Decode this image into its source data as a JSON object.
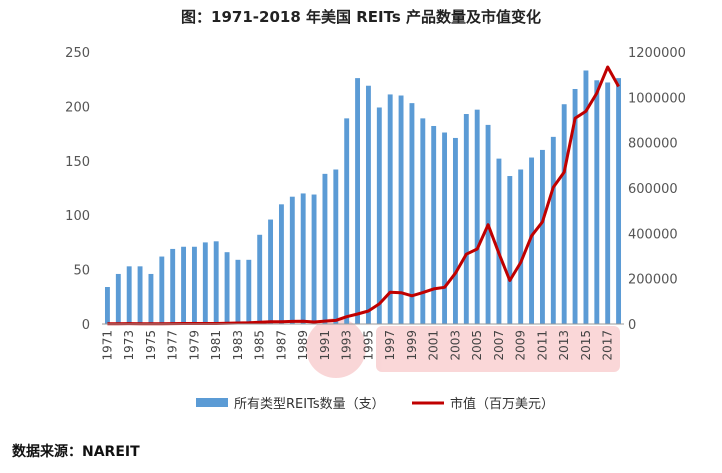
{
  "chart_data": {
    "type": "bar",
    "title": "图：1971-2018 年美国 REITs 产品数量及市值变化",
    "x": [
      1971,
      1972,
      1973,
      1974,
      1975,
      1976,
      1977,
      1978,
      1979,
      1980,
      1981,
      1982,
      1983,
      1984,
      1985,
      1986,
      1987,
      1988,
      1989,
      1990,
      1991,
      1992,
      1993,
      1994,
      1995,
      1996,
      1997,
      1998,
      1999,
      2000,
      2001,
      2002,
      2003,
      2004,
      2005,
      2006,
      2007,
      2008,
      2009,
      2010,
      2011,
      2012,
      2013,
      2014,
      2015,
      2016,
      2017,
      2018
    ],
    "x_tick_labels": [
      "1971",
      "1973",
      "1975",
      "1977",
      "1979",
      "1981",
      "1983",
      "1985",
      "1987",
      "1989",
      "1991",
      "1993",
      "1995",
      "1997",
      "1999",
      "2001",
      "2003",
      "2005",
      "2007",
      "2009",
      "2011",
      "2013",
      "2015",
      "2017"
    ],
    "series": [
      {
        "name": "所有类型REITs数量（支）",
        "type": "bar",
        "axis": "left",
        "color": "#5b9bd5",
        "values": [
          34,
          46,
          53,
          53,
          46,
          62,
          69,
          71,
          71,
          75,
          76,
          66,
          59,
          59,
          82,
          96,
          110,
          117,
          120,
          119,
          138,
          142,
          189,
          226,
          219,
          199,
          211,
          210,
          203,
          189,
          182,
          176,
          171,
          193,
          197,
          183,
          152,
          136,
          142,
          153,
          160,
          172,
          202,
          216,
          233,
          224,
          222,
          226
        ]
      },
      {
        "name": "市值（百万美元）",
        "type": "line",
        "axis": "right",
        "color": "#c00000",
        "values": [
          1500,
          1500,
          1600,
          700,
          900,
          1300,
          1900,
          2000,
          2200,
          2300,
          2400,
          3300,
          4300,
          5100,
          7700,
          9900,
          9700,
          11400,
          11700,
          8700,
          12900,
          16000,
          32000,
          44300,
          57500,
          88800,
          140500,
          138300,
          124300,
          138700,
          154900,
          161900,
          224200,
          307900,
          331000,
          438100,
          312000,
          191700,
          271200,
          389300,
          450500,
          603400,
          670300,
          907400,
          938700,
          1018700,
          1133700,
          1047600
        ]
      }
    ],
    "y_left": {
      "ylim": [
        0,
        250
      ],
      "ticks": [
        0,
        50,
        100,
        150,
        200,
        250
      ]
    },
    "y_right": {
      "ylim": [
        0,
        1200000
      ],
      "ticks": [
        0,
        200000,
        400000,
        600000,
        800000,
        1000000,
        1200000
      ]
    },
    "grid": false,
    "legend_position": "bottom"
  },
  "source_label": "数据来源：NAREIT"
}
